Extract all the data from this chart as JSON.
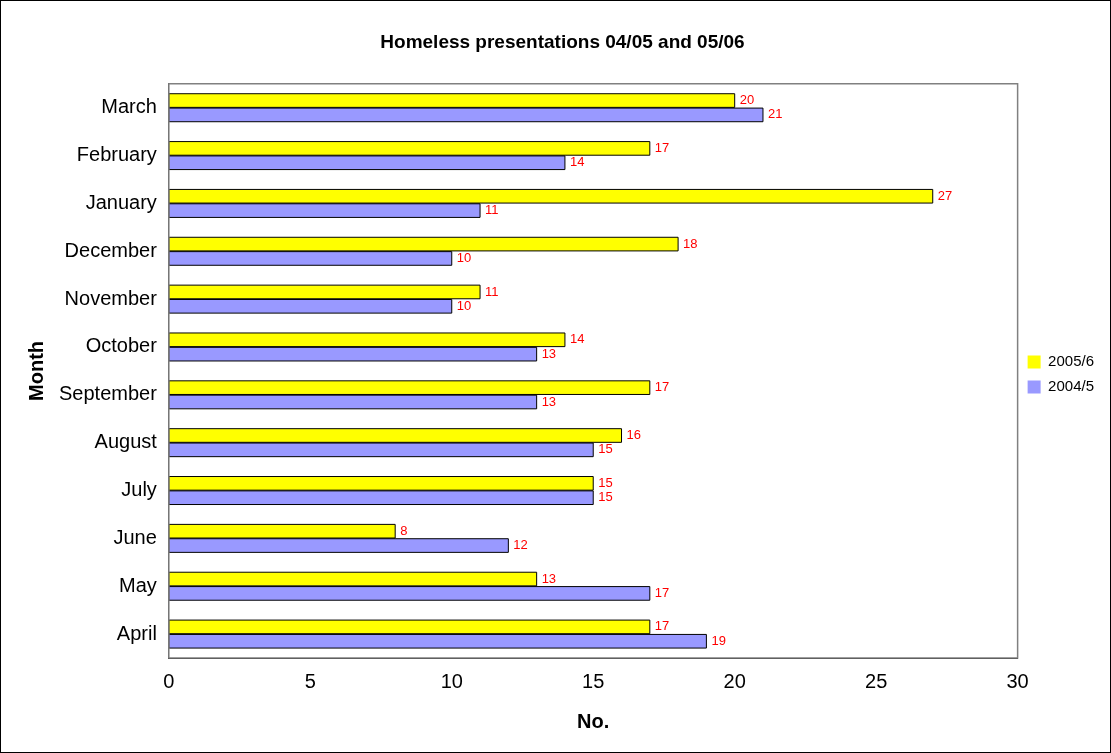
{
  "chart_data": {
    "type": "bar",
    "orientation": "horizontal",
    "title": "Homeless presentations 04/05 and 05/06",
    "xlabel": "No.",
    "ylabel": "Month",
    "categories": [
      "March",
      "February",
      "January",
      "December",
      "November",
      "October",
      "September",
      "August",
      "July",
      "June",
      "May",
      "April"
    ],
    "series": [
      {
        "name": "2005/6",
        "color": "#ffff00",
        "values": [
          20,
          17,
          27,
          18,
          11,
          14,
          17,
          16,
          15,
          8,
          13,
          17
        ]
      },
      {
        "name": "2004/5",
        "color": "#9999ff",
        "values": [
          21,
          14,
          11,
          10,
          10,
          13,
          13,
          15,
          15,
          12,
          17,
          19
        ]
      }
    ],
    "xlim": [
      0,
      30
    ],
    "xticks": [
      0,
      5,
      10,
      15,
      20,
      25,
      30
    ],
    "grid": false,
    "legend": "right",
    "data_labels": true
  }
}
